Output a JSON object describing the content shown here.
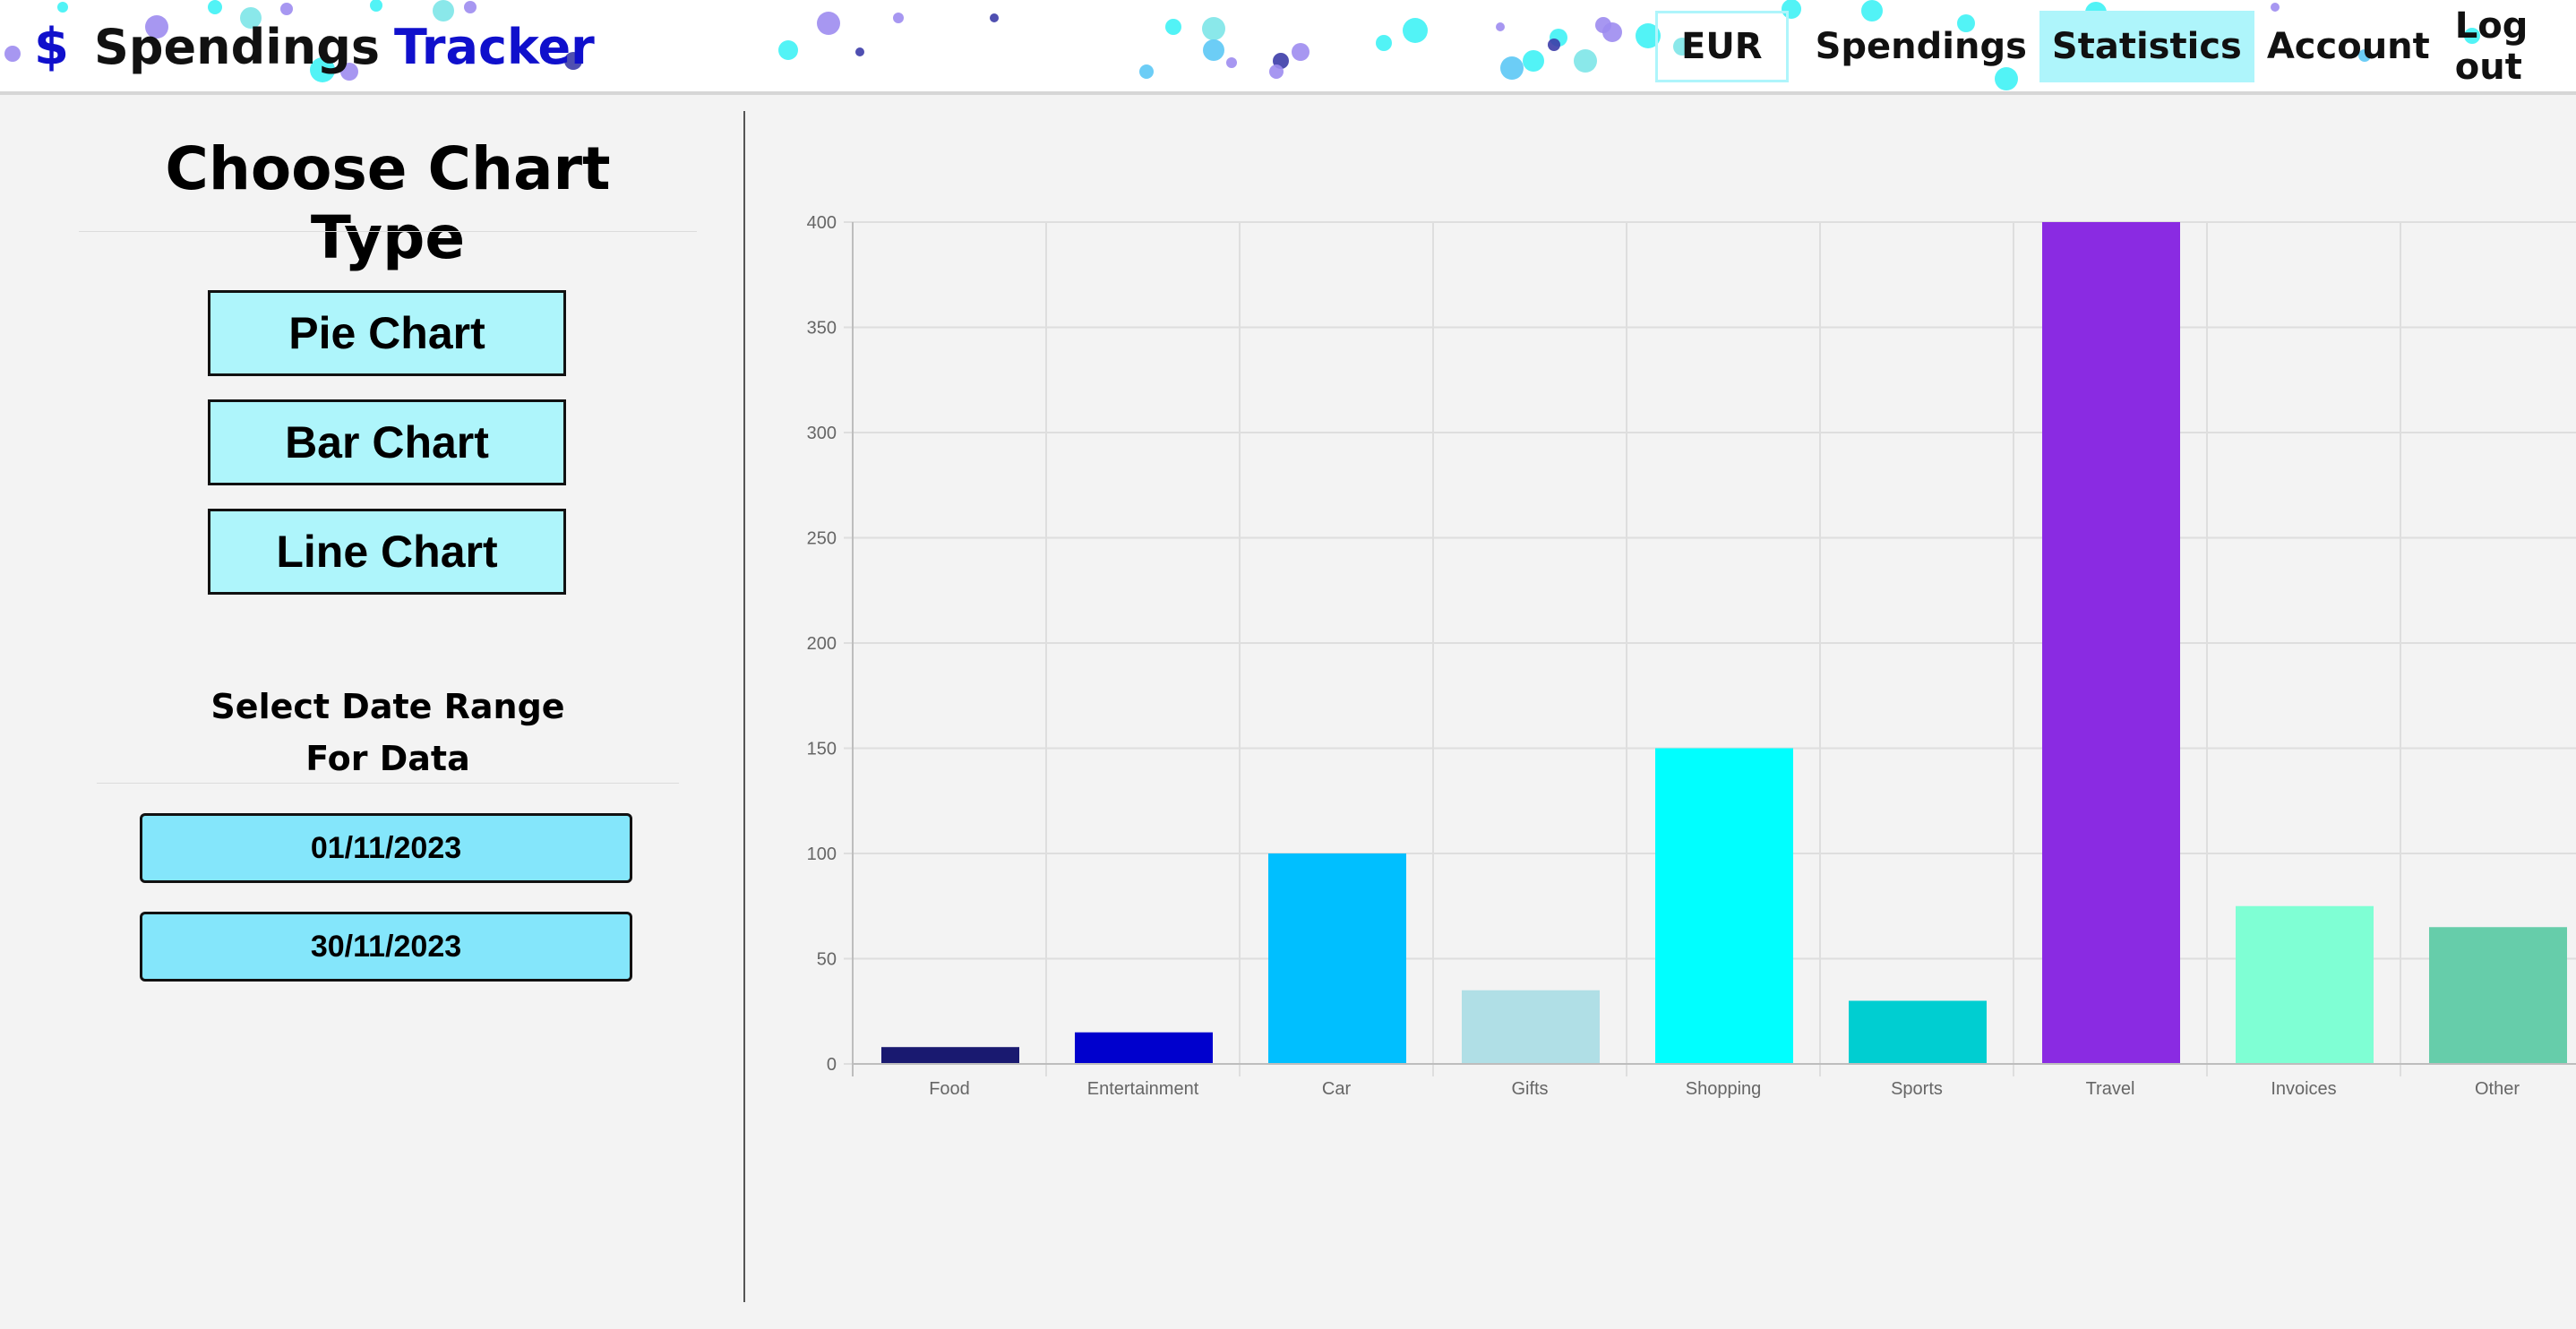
{
  "header": {
    "logo": {
      "symbol": "$",
      "word1": "Spendings",
      "word2": "Tracker"
    },
    "nav": {
      "currency": "EUR",
      "spendings": "Spendings",
      "statistics": "Statistics",
      "account": "Account",
      "logout": "Log out"
    }
  },
  "sidebar": {
    "title": "Choose Chart Type",
    "chart_buttons": {
      "pie": "Pie Chart",
      "bar": "Bar Chart",
      "line": "Line Chart"
    },
    "date_range": {
      "title_line1": "Select Date Range",
      "title_line2": "For Data",
      "start": "01/11/2023",
      "end": "30/11/2023"
    }
  },
  "colors": {
    "accent_light": "#aef5fb",
    "date_button": "#84e6fb",
    "brand_blue": "#1010cc"
  },
  "chart_data": {
    "type": "bar",
    "categories": [
      "Food",
      "Entertainment",
      "Car",
      "Gifts",
      "Shopping",
      "Sports",
      "Travel",
      "Invoices",
      "Other"
    ],
    "values": [
      8,
      15,
      100,
      35,
      150,
      30,
      400,
      75,
      65
    ],
    "colors": [
      "#191970",
      "#0000cd",
      "#00bfff",
      "#b0dfe6",
      "#00ffff",
      "#00ced1",
      "#8a2be2",
      "#7fffd4",
      "#66cdaa"
    ],
    "yticks": [
      "0",
      "50",
      "100",
      "150",
      "200",
      "250",
      "300",
      "350",
      "400"
    ],
    "ylim": [
      0,
      400
    ],
    "grid": true
  }
}
